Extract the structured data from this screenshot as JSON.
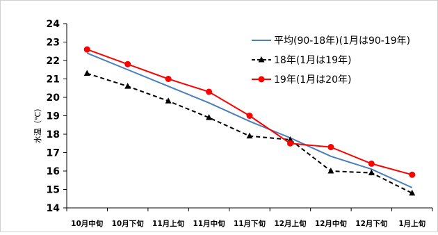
{
  "chart_data": {
    "type": "line",
    "title": "",
    "xlabel": "",
    "ylabel": "水温（℃）",
    "ylim": [
      14,
      24
    ],
    "yticks": [
      14,
      15,
      16,
      17,
      18,
      19,
      20,
      21,
      22,
      23,
      24
    ],
    "grid": false,
    "legend_position": "top-right",
    "categories": [
      "10月中旬",
      "10月下旬",
      "11月上旬",
      "11月中旬",
      "11月下旬",
      "12月上旬",
      "12月中旬",
      "12月下旬",
      "1月上旬"
    ],
    "series": [
      {
        "name": "平均(90-18年)(1月は90-19年)",
        "color": "#4a7ebb",
        "style": "solid",
        "marker": "none",
        "values": [
          22.4,
          21.5,
          20.6,
          19.7,
          18.7,
          17.8,
          16.8,
          16.1,
          15.1
        ]
      },
      {
        "name": "18年(1月は19年)",
        "color": "#000000",
        "style": "dashed",
        "marker": "triangle",
        "values": [
          21.3,
          20.6,
          19.8,
          18.9,
          17.9,
          17.7,
          16.0,
          15.9,
          14.8
        ]
      },
      {
        "name": "19年(1月は20年)",
        "color": "#ff0000",
        "style": "solid",
        "marker": "circle",
        "values": [
          22.6,
          21.8,
          21.0,
          20.3,
          19.0,
          17.5,
          17.3,
          16.4,
          15.8
        ]
      }
    ]
  }
}
